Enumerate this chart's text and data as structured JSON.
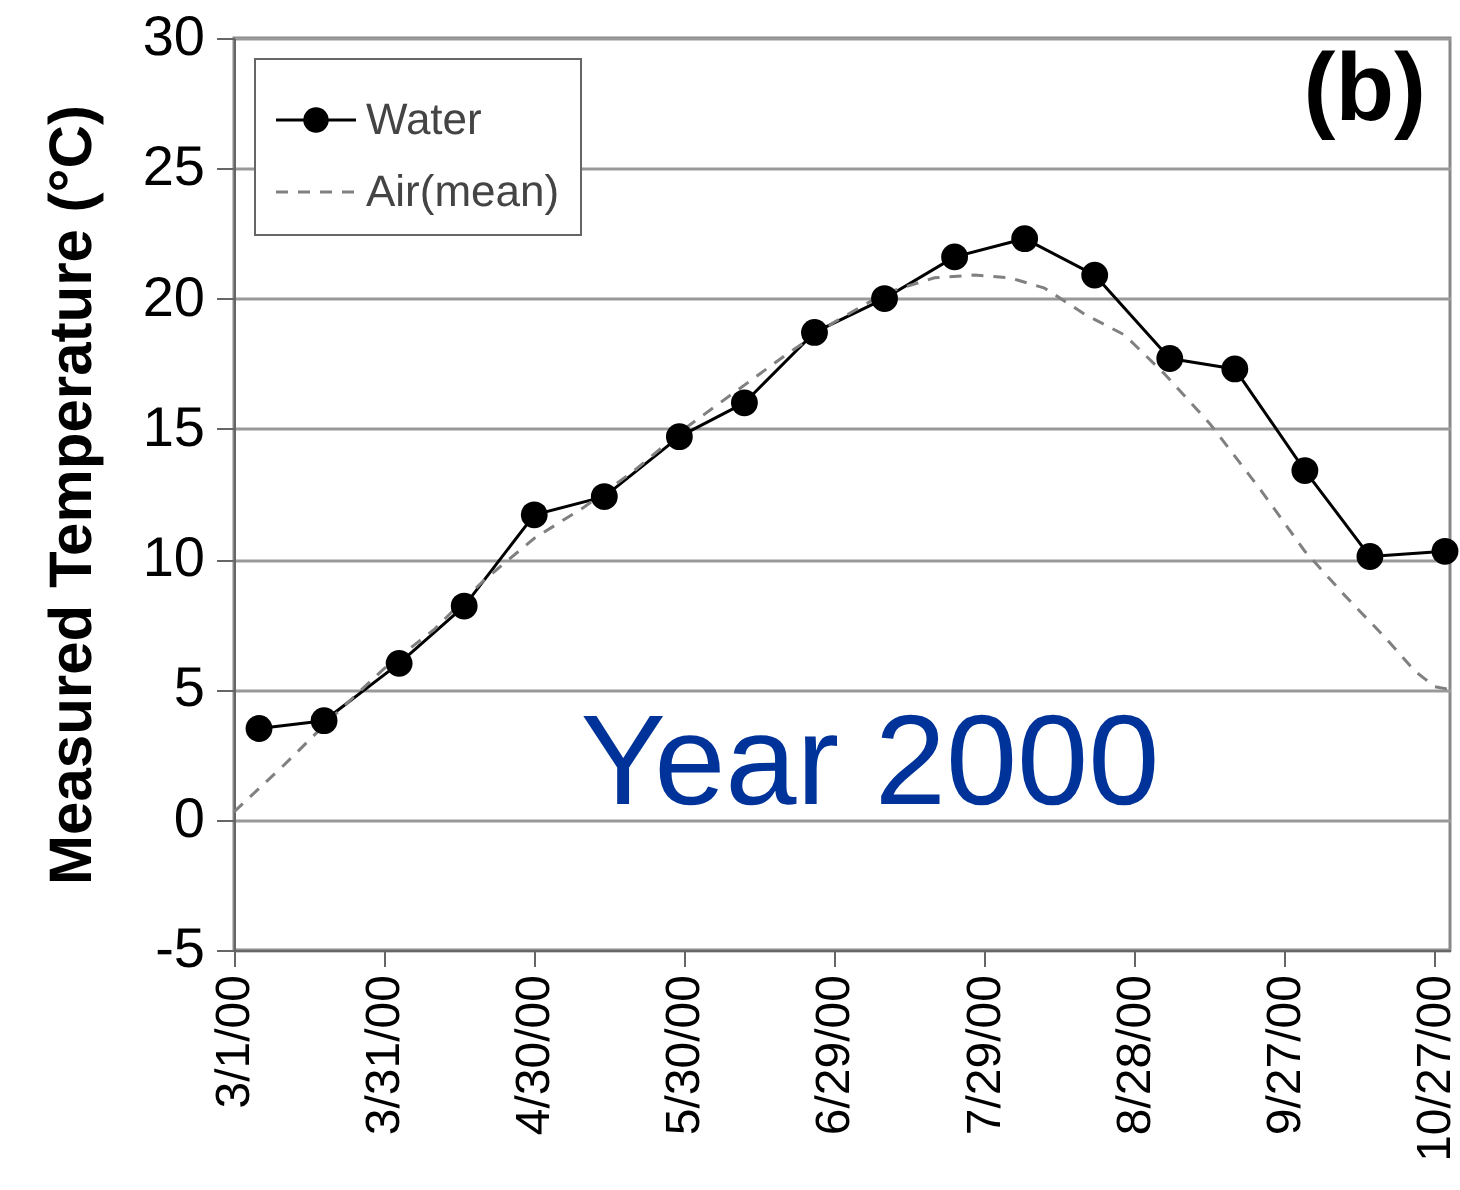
{
  "chart_data": {
    "type": "line",
    "ylabel": "Measured Temperature (°C)",
    "annotations": [
      "(b)",
      "Year 2000"
    ],
    "xlim": [
      "2000-03-01",
      "2000-10-30"
    ],
    "xticks": [
      {
        "value": "2000-03-01",
        "label": "3/1/00"
      },
      {
        "value": "2000-03-31",
        "label": "3/31/00"
      },
      {
        "value": "2000-04-30",
        "label": "4/30/00"
      },
      {
        "value": "2000-05-30",
        "label": "5/30/00"
      },
      {
        "value": "2000-06-29",
        "label": "6/29/00"
      },
      {
        "value": "2000-07-29",
        "label": "7/29/00"
      },
      {
        "value": "2000-08-28",
        "label": "8/28/00"
      },
      {
        "value": "2000-09-27",
        "label": "9/27/00"
      },
      {
        "value": "2000-10-27",
        "label": "10/27/00"
      }
    ],
    "ylim": [
      -5,
      30
    ],
    "yticks": [
      -5,
      0,
      5,
      10,
      15,
      20,
      25,
      30
    ],
    "grid": "y",
    "legend": "top left",
    "series": [
      {
        "name": "Water",
        "color": "#000000",
        "marker": "circle",
        "line_style": "solid",
        "x": [
          "2000-03-06",
          "2000-03-19",
          "2000-04-03",
          "2000-04-16",
          "2000-04-30",
          "2000-05-14",
          "2000-05-29",
          "2000-06-11",
          "2000-06-25",
          "2000-07-09",
          "2000-07-23",
          "2000-08-06",
          "2000-08-20",
          "2000-09-04",
          "2000-09-17",
          "2000-10-01",
          "2000-10-14",
          "2000-10-29"
        ],
        "values": [
          3.5,
          3.8,
          6.0,
          8.2,
          11.7,
          12.4,
          14.7,
          16.0,
          18.7,
          20.0,
          21.6,
          22.3,
          20.9,
          17.7,
          17.3,
          13.4,
          10.1,
          10.3
        ]
      },
      {
        "name": "Air(mean)",
        "color": "#808080",
        "marker": "none",
        "line_style": "dashed",
        "x": [
          "2000-03-01",
          "2000-03-11",
          "2000-03-21",
          "2000-03-31",
          "2000-04-10",
          "2000-04-20",
          "2000-04-30",
          "2000-05-10",
          "2000-05-20",
          "2000-05-30",
          "2000-06-09",
          "2000-06-19",
          "2000-06-29",
          "2000-07-09",
          "2000-07-19",
          "2000-07-27",
          "2000-08-03",
          "2000-08-10",
          "2000-08-18",
          "2000-08-26",
          "2000-09-03",
          "2000-09-12",
          "2000-09-22",
          "2000-10-01",
          "2000-10-09",
          "2000-10-17",
          "2000-10-23",
          "2000-10-27",
          "2000-10-30"
        ],
        "values": [
          0.3,
          2.1,
          4.0,
          5.8,
          7.3,
          9.2,
          10.8,
          12.0,
          13.4,
          15.0,
          16.4,
          17.8,
          19.1,
          20.2,
          20.8,
          20.9,
          20.8,
          20.4,
          19.4,
          18.6,
          17.1,
          15.2,
          12.7,
          10.3,
          8.6,
          7.0,
          5.7,
          5.1,
          5.0
        ]
      }
    ]
  }
}
